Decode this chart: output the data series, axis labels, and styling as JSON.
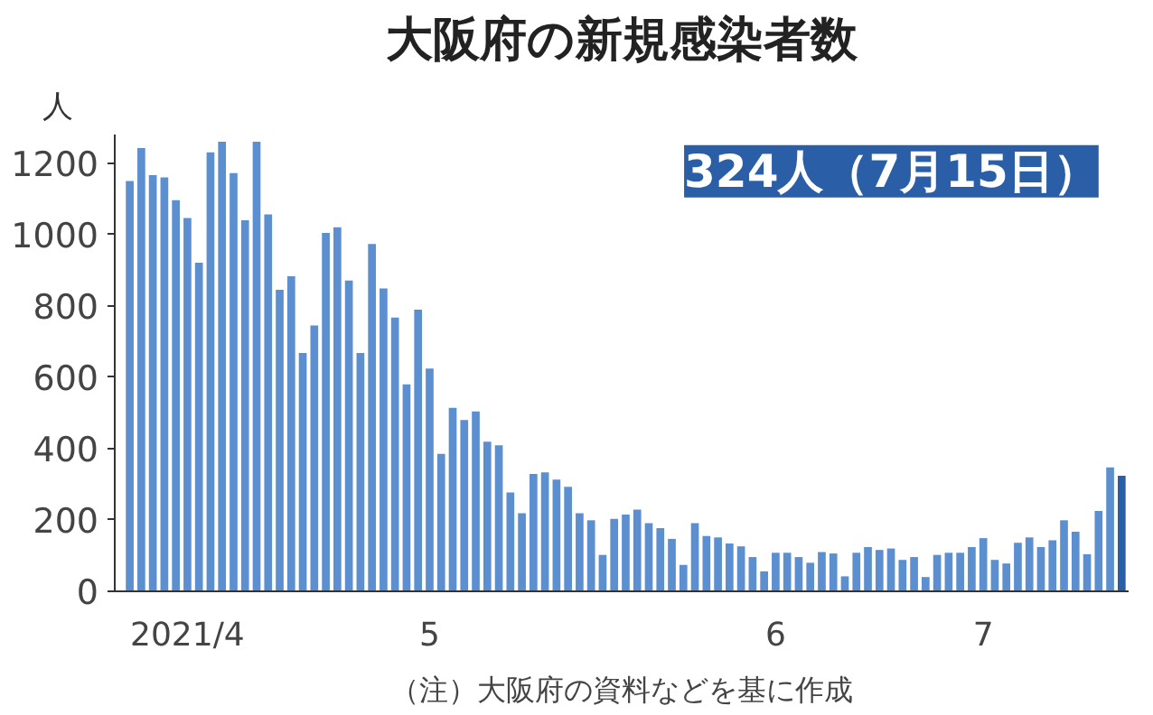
{
  "chart_data": {
    "type": "bar",
    "title": "大阪府の新規感染者数",
    "ylabel": "人",
    "categories": [
      null,
      null,
      null,
      null,
      null,
      "2021/4",
      null,
      null,
      null,
      null,
      null,
      null,
      null,
      null,
      null,
      null,
      null,
      null,
      null,
      null,
      null,
      null,
      null,
      null,
      null,
      null,
      "5",
      null,
      null,
      null,
      null,
      null,
      null,
      null,
      null,
      null,
      null,
      null,
      null,
      null,
      null,
      null,
      null,
      null,
      null,
      null,
      null,
      null,
      null,
      null,
      null,
      null,
      null,
      null,
      null,
      null,
      "6",
      null,
      null,
      null,
      null,
      null,
      null,
      null,
      null,
      null,
      null,
      null,
      null,
      null,
      null,
      null,
      null,
      null,
      "7",
      null,
      null,
      null,
      null,
      null,
      null,
      null,
      null,
      null,
      null,
      null,
      null
    ],
    "values": [
      1150,
      1242,
      1166,
      1160,
      1096,
      1046,
      921,
      1230,
      1260,
      1172,
      1040,
      1260,
      1056,
      845,
      883,
      668,
      745,
      1004,
      1020,
      871,
      668,
      973,
      849,
      767,
      580,
      789,
      624,
      385,
      514,
      480,
      504,
      419,
      409,
      277,
      219,
      329,
      333,
      313,
      293,
      219,
      199,
      102,
      203,
      215,
      229,
      191,
      177,
      147,
      74,
      191,
      155,
      151,
      134,
      126,
      96,
      56,
      108,
      108,
      96,
      80,
      110,
      106,
      42,
      108,
      124,
      116,
      120,
      88,
      96,
      40,
      102,
      108,
      108,
      124,
      149,
      88,
      78,
      136,
      151,
      124,
      143,
      199,
      167,
      104,
      225,
      347,
      324
    ],
    "colors": [
      "#5b8fcf",
      "#5b8fcf",
      "#5b8fcf",
      "#5b8fcf",
      "#5b8fcf",
      "#5b8fcf",
      "#5b8fcf",
      "#5b8fcf",
      "#5b8fcf",
      "#5b8fcf",
      "#5b8fcf",
      "#5b8fcf",
      "#5b8fcf",
      "#5b8fcf",
      "#5b8fcf",
      "#5b8fcf",
      "#5b8fcf",
      "#5b8fcf",
      "#5b8fcf",
      "#5b8fcf",
      "#5b8fcf",
      "#5b8fcf",
      "#5b8fcf",
      "#5b8fcf",
      "#5b8fcf",
      "#5b8fcf",
      "#5b8fcf",
      "#5b8fcf",
      "#5b8fcf",
      "#5b8fcf",
      "#5b8fcf",
      "#5b8fcf",
      "#5b8fcf",
      "#5b8fcf",
      "#5b8fcf",
      "#5b8fcf",
      "#5b8fcf",
      "#5b8fcf",
      "#5b8fcf",
      "#5b8fcf",
      "#5b8fcf",
      "#5b8fcf",
      "#5b8fcf",
      "#5b8fcf",
      "#5b8fcf",
      "#5b8fcf",
      "#5b8fcf",
      "#5b8fcf",
      "#5b8fcf",
      "#5b8fcf",
      "#5b8fcf",
      "#5b8fcf",
      "#5b8fcf",
      "#5b8fcf",
      "#5b8fcf",
      "#5b8fcf",
      "#5b8fcf",
      "#5b8fcf",
      "#5b8fcf",
      "#5b8fcf",
      "#5b8fcf",
      "#5b8fcf",
      "#5b8fcf",
      "#5b8fcf",
      "#5b8fcf",
      "#5b8fcf",
      "#5b8fcf",
      "#5b8fcf",
      "#5b8fcf",
      "#5b8fcf",
      "#5b8fcf",
      "#5b8fcf",
      "#5b8fcf",
      "#5b8fcf",
      "#5b8fcf",
      "#5b8fcf",
      "#5b8fcf",
      "#5b8fcf",
      "#5b8fcf",
      "#5b8fcf",
      "#5b8fcf",
      "#5b8fcf",
      "#5b8fcf",
      "#5b8fcf",
      "#5b8fcf",
      "#5b8fcf",
      "#2a5fa8"
    ],
    "ylim": [
      0,
      1280
    ],
    "yticks": [
      0,
      200,
      400,
      600,
      800,
      1000,
      1200
    ],
    "annotations": [
      "324人（7月15日）",
      "（注）大阪府の資料などを基に作成"
    ]
  }
}
